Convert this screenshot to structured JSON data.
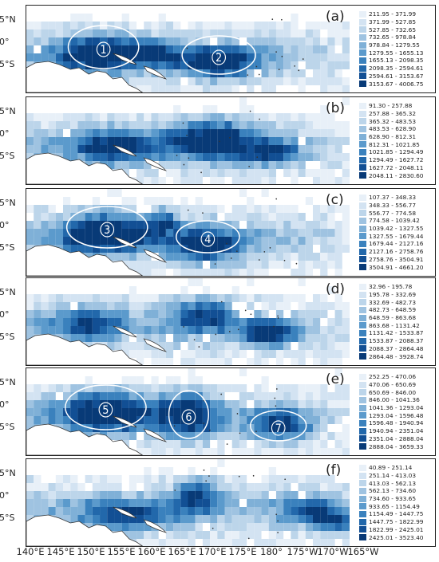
{
  "latitude_labels": [
    "5°N",
    "0°",
    "5°S"
  ],
  "longitude_labels": [
    "140°E",
    "145°E",
    "150°E",
    "155°E",
    "160°E",
    "165°E",
    "170°E",
    "175°E",
    "180°",
    "175°W",
    "170°W",
    "165°W"
  ],
  "colors": [
    "#e8f0f8",
    "#d3e3f2",
    "#bcd5ea",
    "#9fc3e1",
    "#7fb0d7",
    "#5b9acc",
    "#3a81bd",
    "#2268ab",
    "#124f94",
    "#083a77"
  ],
  "panels": [
    {
      "letter": "(a)",
      "legend": [
        "211.95 - 371.99",
        "371.99 - 527.85",
        "527.85 - 732.65",
        "732.65 - 978.84",
        "978.84 - 1279.55",
        "1279.55 - 1655.13",
        "1655.13 - 2098.35",
        "2098.35 - 2594.61",
        "2594.61 - 3153.67",
        "3153.67 - 4006.75"
      ],
      "regions": [
        {
          "number": "1"
        },
        {
          "number": "2"
        }
      ]
    },
    {
      "letter": "(b)",
      "legend": [
        "91.30 - 257.88",
        "257.88 - 365.32",
        "365.32 - 483.53",
        "483.53 - 628.90",
        "628.90 - 812.31",
        "812.31 - 1021.85",
        "1021.85 - 1294.49",
        "1294.49 - 1627.72",
        "1627.72 - 2048.11",
        "2048.11 - 2830.60"
      ],
      "regions": []
    },
    {
      "letter": "(c)",
      "legend": [
        "107.37 - 348.33",
        "348.33 - 556.77",
        "556.77 - 774.58",
        "774.58 - 1039.42",
        "1039.42 - 1327.55",
        "1327.55 - 1679.44",
        "1679.44 - 2127.16",
        "2127.16 - 2758.76",
        "2758.76 - 3504.91",
        "3504.91 - 4661.20"
      ],
      "regions": [
        {
          "number": "3"
        },
        {
          "number": "4"
        }
      ]
    },
    {
      "letter": "(d)",
      "legend": [
        "32.96 - 195.78",
        "195.78 - 332.69",
        "332.69 - 482.73",
        "482.73 - 648.59",
        "648.59 - 863.68",
        "863.68 - 1131.42",
        "1131.42 - 1533.87",
        "1533.87 - 2088.37",
        "2088.37 - 2864.48",
        "2864.48 - 3928.74"
      ],
      "regions": []
    },
    {
      "letter": "(e)",
      "legend": [
        "252.25 - 470.06",
        "470.06 - 650.69",
        "650.69 - 846.00",
        "846.00 - 1041.36",
        "1041.36 - 1293.04",
        "1293.04 - 1596.48",
        "1596.48 - 1940.94",
        "1940.94 - 2351.04",
        "2351.04 - 2888.04",
        "2888.04 - 3659.33"
      ],
      "regions": [
        {
          "number": "5"
        },
        {
          "number": "6"
        },
        {
          "number": "7"
        }
      ]
    },
    {
      "letter": "(f)",
      "legend": [
        "40.89 - 251.14",
        "251.14 - 413.03",
        "413.03 - 562.13",
        "562.13 - 734.60",
        "734.60 - 933.65",
        "933.65 - 1154.49",
        "1154.49 - 1447.75",
        "1447.75 - 1822.99",
        "1822.99 - 2425.01",
        "2425.01 - 3523.40"
      ],
      "regions": []
    }
  ]
}
